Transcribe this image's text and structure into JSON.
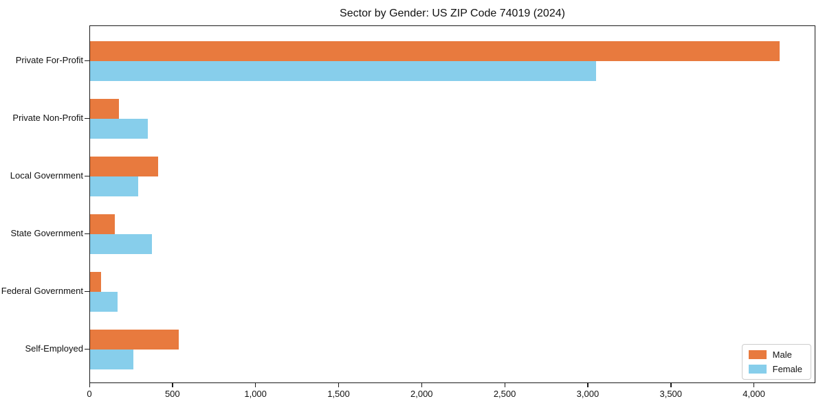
{
  "chart_data": {
    "type": "bar",
    "orientation": "horizontal",
    "title": "Sector by Gender: US ZIP Code 74019 (2024)",
    "categories": [
      "Private For-Profit",
      "Private Non-Profit",
      "Local Government",
      "State Government",
      "Federal Government",
      "Self-Employed"
    ],
    "series": [
      {
        "name": "Male",
        "color": "#E87A3E",
        "values": [
          4160,
          175,
          410,
          150,
          65,
          535
        ]
      },
      {
        "name": "Female",
        "color": "#87CEEB",
        "values": [
          3050,
          350,
          290,
          375,
          165,
          260
        ]
      }
    ],
    "xlabel": "",
    "ylabel": "",
    "xlim": [
      0,
      4370
    ],
    "xticks": [
      0,
      500,
      1000,
      1500,
      2000,
      2500,
      3000,
      3500,
      4000
    ],
    "xticklabels": [
      "0",
      "500",
      "1,000",
      "1,500",
      "2,000",
      "2,500",
      "3,000",
      "3,500",
      "4,000"
    ],
    "grid": false,
    "legend": {
      "position": "lower right",
      "entries": [
        "Male",
        "Female"
      ]
    },
    "colors": {
      "frame": "#1a1a1a",
      "background": "#ffffff"
    }
  }
}
